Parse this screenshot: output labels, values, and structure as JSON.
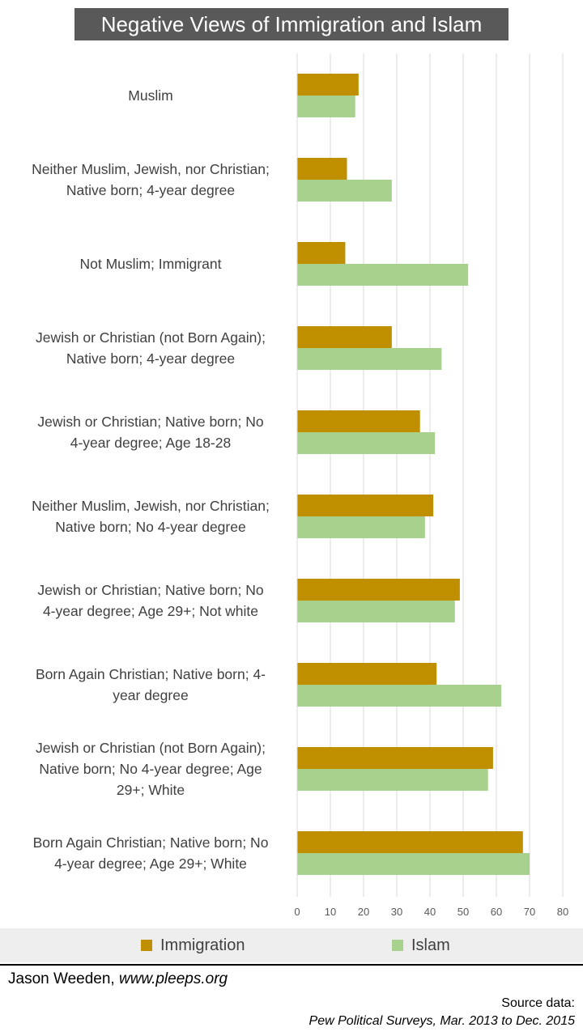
{
  "footer": {
    "author": "Jason Weeden,",
    "website": "www.pleeps.org",
    "source_label": "Source data:",
    "source_text": "Pew Political Surveys,   Mar. 2013 to Dec. 2015"
  },
  "chart_data": {
    "type": "bar",
    "orientation": "horizontal",
    "title": "Negative Views of Immigration and Islam",
    "xlabel": "",
    "ylabel": "",
    "xlim": [
      0,
      80
    ],
    "xticks": [
      "0",
      "10",
      "20",
      "30",
      "40",
      "50",
      "60",
      "70",
      "80"
    ],
    "grid": true,
    "legend_position": "bottom",
    "categories": [
      [
        "Muslim"
      ],
      [
        "Neither Muslim, Jewish, nor Christian;",
        "Native born; 4-year degree"
      ],
      [
        "Not Muslim; Immigrant"
      ],
      [
        "Jewish or Christian (not Born Again);",
        "Native born; 4-year degree"
      ],
      [
        "Jewish or Christian; Native born; No",
        "4-year degree; Age 18-28"
      ],
      [
        "Neither Muslim, Jewish, nor Christian;",
        "Native born; No 4-year degree"
      ],
      [
        "Jewish or Christian; Native born; No",
        "4-year degree; Age 29+; Not white"
      ],
      [
        "Born Again Christian; Native born; 4-",
        "year degree"
      ],
      [
        "Jewish or Christian (not Born Again);",
        "Native born; No 4-year degree; Age",
        "29+; White"
      ],
      [
        "Born Again Christian; Native born; No",
        "4-year degree; Age 29+; White"
      ]
    ],
    "series": [
      {
        "name": "Immigration",
        "color": "#bf8f00",
        "values": [
          18.5,
          15,
          14.5,
          28.5,
          37,
          41,
          49,
          42,
          59,
          68
        ]
      },
      {
        "name": "Islam",
        "color": "#a9d18e",
        "values": [
          17.5,
          28.5,
          51.5,
          43.5,
          41.5,
          38.5,
          47.5,
          61.5,
          57.5,
          70
        ]
      }
    ]
  }
}
